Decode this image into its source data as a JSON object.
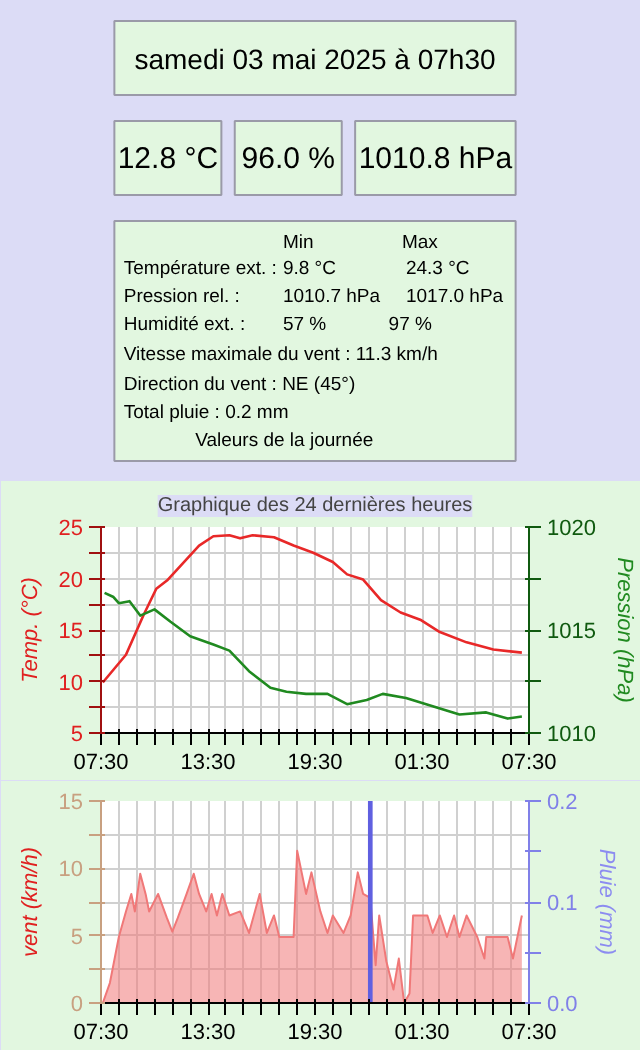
{
  "chart_data": [
    {
      "type": "other",
      "title": "samedi 03 mai 2025 à 07h30"
    },
    {
      "type": "other",
      "annotations": [
        "12.8 °C",
        "96.0 %",
        "1010.8 hPa"
      ]
    },
    {
      "type": "other",
      "annotations": [
        "Min",
        "Max",
        "Température ext. :",
        "9.8 °C",
        "24.3 °C",
        "Pression rel. :",
        "1010.7 hPa",
        "1017.0 hPa",
        "Humidité ext. :",
        "57 %",
        "97 %",
        "Vitesse maximale du vent : 11.3 km/h",
        "Direction du vent : NE (45°)",
        "Total pluie : 0.2 mm",
        "Valeurs de la journée"
      ]
    },
    {
      "type": "line",
      "title": "Graphique des 24 dernières heures",
      "ylabel": "Temp. (°C)",
      "y2label": "Pression (hPa)",
      "grid": true,
      "xlim": [
        "2025-05-02T07:30",
        "2025-05-03T07:30"
      ],
      "xticks": [
        {
          "value": "2025-05-02T07:30",
          "label": "07:30"
        },
        {
          "value": "2025-05-02T08:30",
          "label": null
        },
        {
          "value": "2025-05-02T09:30",
          "label": null
        },
        {
          "value": "2025-05-02T10:30",
          "label": null
        },
        {
          "value": "2025-05-02T11:30",
          "label": null
        },
        {
          "value": "2025-05-02T12:30",
          "label": null
        },
        {
          "value": "2025-05-02T13:30",
          "label": "13:30"
        },
        {
          "value": "2025-05-02T14:30",
          "label": null
        },
        {
          "value": "2025-05-02T15:30",
          "label": null
        },
        {
          "value": "2025-05-02T16:30",
          "label": null
        },
        {
          "value": "2025-05-02T17:30",
          "label": null
        },
        {
          "value": "2025-05-02T18:30",
          "label": null
        },
        {
          "value": "2025-05-02T19:30",
          "label": "19:30"
        },
        {
          "value": "2025-05-02T20:30",
          "label": null
        },
        {
          "value": "2025-05-02T21:30",
          "label": null
        },
        {
          "value": "2025-05-02T22:30",
          "label": null
        },
        {
          "value": "2025-05-02T23:30",
          "label": null
        },
        {
          "value": "2025-05-03T00:30",
          "label": null
        },
        {
          "value": "2025-05-03T01:30",
          "label": "01:30"
        },
        {
          "value": "2025-05-03T02:30",
          "label": null
        },
        {
          "value": "2025-05-03T03:30",
          "label": null
        },
        {
          "value": "2025-05-03T04:30",
          "label": null
        },
        {
          "value": "2025-05-03T05:30",
          "label": null
        },
        {
          "value": "2025-05-03T06:30",
          "label": null
        },
        {
          "value": "2025-05-03T07:30",
          "label": "07:30"
        }
      ],
      "ylim": [
        5,
        25
      ],
      "yticks": [
        5,
        {
          "value": 7.5,
          "label": null
        },
        10,
        {
          "value": 12.5,
          "label": null
        },
        15,
        {
          "value": 17.5,
          "label": null
        },
        20,
        {
          "value": 22.5,
          "label": null
        },
        25
      ],
      "y2lim": [
        1010,
        1020
      ],
      "y2ticks": [
        1010,
        {
          "value": 1012.5,
          "label": null
        },
        1015,
        {
          "value": 1017.5,
          "label": null
        },
        1020
      ],
      "series": [
        {
          "color": "#e82828",
          "x": [
            "2025-05-02T07:36",
            "2025-05-02T08:54",
            "2025-05-02T09:54",
            "2025-05-02T10:36",
            "2025-05-02T11:12",
            "2025-05-02T12:06",
            "2025-05-02T13:00",
            "2025-05-02T13:48",
            "2025-05-02T14:42",
            "2025-05-02T15:18",
            "2025-05-02T16:00",
            "2025-05-02T17:12",
            "2025-05-02T18:18",
            "2025-05-02T19:24",
            "2025-05-02T20:30",
            "2025-05-02T21:18",
            "2025-05-02T22:12",
            "2025-05-02T23:12",
            "2025-05-03T00:18",
            "2025-05-03T01:24",
            "2025-05-03T02:30",
            "2025-05-03T04:00",
            "2025-05-03T05:30",
            "2025-05-03T07:06"
          ],
          "values": [
            9.9,
            12.6,
            16.5,
            19.0,
            19.8,
            21.5,
            23.2,
            24.1,
            24.2,
            23.9,
            24.2,
            24.0,
            23.2,
            22.5,
            21.6,
            20.4,
            19.9,
            17.9,
            16.7,
            16.0,
            14.8,
            13.8,
            13.1,
            12.8
          ]
        },
        {
          "color": "#208a20",
          "axis": "y2",
          "x": [
            "2025-05-02T07:42",
            "2025-05-02T08:12",
            "2025-05-02T08:30",
            "2025-05-02T09:06",
            "2025-05-02T09:42",
            "2025-05-02T10:30",
            "2025-05-02T11:24",
            "2025-05-02T12:30",
            "2025-05-02T13:48",
            "2025-05-02T14:42",
            "2025-05-02T15:48",
            "2025-05-02T17:00",
            "2025-05-02T17:54",
            "2025-05-02T19:00",
            "2025-05-02T20:12",
            "2025-05-02T21:18",
            "2025-05-02T22:24",
            "2025-05-02T23:18",
            "2025-05-03T00:36",
            "2025-05-03T02:06",
            "2025-05-03T03:36",
            "2025-05-03T05:06",
            "2025-05-03T06:18",
            "2025-05-03T07:06"
          ],
          "values": [
            1016.8,
            1016.6,
            1016.3,
            1016.4,
            1015.7,
            1016.0,
            1015.4,
            1014.7,
            1014.3,
            1014.0,
            1013.0,
            1012.2,
            1012.0,
            1011.9,
            1011.9,
            1011.4,
            1011.6,
            1011.9,
            1011.7,
            1011.3,
            1010.9,
            1011.0,
            1010.7,
            1010.8
          ]
        }
      ]
    },
    {
      "type": "area",
      "ylabel": "vent (km/h)",
      "y2label": "Pluie (mm)",
      "grid": true,
      "xlim": [
        "2025-05-02T07:30",
        "2025-05-03T07:30"
      ],
      "xticks": [
        {
          "value": "2025-05-02T07:30",
          "label": "07:30"
        },
        {
          "value": "2025-05-02T08:30",
          "label": null
        },
        {
          "value": "2025-05-02T09:30",
          "label": null
        },
        {
          "value": "2025-05-02T10:30",
          "label": null
        },
        {
          "value": "2025-05-02T11:30",
          "label": null
        },
        {
          "value": "2025-05-02T12:30",
          "label": null
        },
        {
          "value": "2025-05-02T13:30",
          "label": "13:30"
        },
        {
          "value": "2025-05-02T14:30",
          "label": null
        },
        {
          "value": "2025-05-02T15:30",
          "label": null
        },
        {
          "value": "2025-05-02T16:30",
          "label": null
        },
        {
          "value": "2025-05-02T17:30",
          "label": null
        },
        {
          "value": "2025-05-02T18:30",
          "label": null
        },
        {
          "value": "2025-05-02T19:30",
          "label": "19:30"
        },
        {
          "value": "2025-05-02T20:30",
          "label": null
        },
        {
          "value": "2025-05-02T21:30",
          "label": null
        },
        {
          "value": "2025-05-02T22:30",
          "label": null
        },
        {
          "value": "2025-05-02T23:30",
          "label": null
        },
        {
          "value": "2025-05-03T00:30",
          "label": null
        },
        {
          "value": "2025-05-03T01:30",
          "label": "01:30"
        },
        {
          "value": "2025-05-03T02:30",
          "label": null
        },
        {
          "value": "2025-05-03T03:30",
          "label": null
        },
        {
          "value": "2025-05-03T04:30",
          "label": null
        },
        {
          "value": "2025-05-03T05:30",
          "label": null
        },
        {
          "value": "2025-05-03T06:30",
          "label": null
        },
        {
          "value": "2025-05-03T07:30",
          "label": "07:30"
        }
      ],
      "ylim": [
        0,
        15
      ],
      "yticks": [
        0,
        {
          "value": 2.5,
          "label": null
        },
        5,
        {
          "value": 7.5,
          "label": null
        },
        10,
        {
          "value": 12.5,
          "label": null
        },
        15
      ],
      "y2lim": [
        0,
        0.2
      ],
      "y2ticks": [
        {
          "value": 0,
          "label": "0.0"
        },
        {
          "value": 0.05,
          "label": null
        },
        {
          "value": 0.1,
          "label": "0.1"
        },
        {
          "value": 0.15,
          "label": null
        },
        {
          "value": 0.2,
          "label": "0.2"
        }
      ],
      "series": [
        {
          "color": "#f07878",
          "x": [
            "2025-05-02T07:36",
            "2025-05-02T08:00",
            "2025-05-02T08:30",
            "2025-05-02T08:54",
            "2025-05-02T09:12",
            "2025-05-02T09:24",
            "2025-05-02T09:42",
            "2025-05-02T10:00",
            "2025-05-02T10:12",
            "2025-05-02T10:42",
            "2025-05-02T11:12",
            "2025-05-02T11:30",
            "2025-05-02T11:48",
            "2025-05-02T12:18",
            "2025-05-02T12:42",
            "2025-05-02T13:00",
            "2025-05-02T13:24",
            "2025-05-02T13:42",
            "2025-05-02T14:00",
            "2025-05-02T14:18",
            "2025-05-02T14:42",
            "2025-05-02T15:18",
            "2025-05-02T15:48",
            "2025-05-02T16:24",
            "2025-05-02T16:48",
            "2025-05-02T17:12",
            "2025-05-02T17:30",
            "2025-05-02T18:18",
            "2025-05-02T18:30",
            "2025-05-02T19:00",
            "2025-05-02T19:18",
            "2025-05-02T19:48",
            "2025-05-02T20:12",
            "2025-05-02T20:30",
            "2025-05-02T21:06",
            "2025-05-02T21:30",
            "2025-05-02T21:54",
            "2025-05-02T22:12",
            "2025-05-02T22:36",
            "2025-05-02T22:54",
            "2025-05-02T23:06",
            "2025-05-02T23:30",
            "2025-05-02T23:54",
            "2025-05-03T00:12",
            "2025-05-03T00:30",
            "2025-05-03T00:48",
            "2025-05-03T01:00",
            "2025-05-03T01:48",
            "2025-05-03T02:06",
            "2025-05-03T02:30",
            "2025-05-03T02:54",
            "2025-05-03T03:18",
            "2025-05-03T03:36",
            "2025-05-03T04:00",
            "2025-05-03T04:36",
            "2025-05-03T05:00",
            "2025-05-03T05:06",
            "2025-05-03T06:18",
            "2025-05-03T06:36",
            "2025-05-03T07:06"
          ],
          "values": [
            0,
            1.5,
            4.9,
            6.8,
            8.1,
            6.8,
            9.6,
            8.1,
            6.8,
            8.1,
            6.3,
            5.3,
            6.3,
            8.1,
            9.6,
            8.1,
            6.8,
            8.1,
            6.5,
            8.1,
            6.5,
            6.8,
            5.2,
            8.1,
            5.2,
            6.5,
            4.9,
            4.9,
            11.3,
            8.1,
            9.7,
            6.8,
            5.2,
            6.5,
            5.2,
            6.5,
            9.7,
            8.1,
            7.8,
            2.8,
            6.5,
            3.1,
            1.0,
            3.3,
            0,
            0.7,
            6.5,
            6.5,
            5.2,
            6.5,
            4.9,
            6.5,
            4.9,
            6.5,
            4.9,
            3.3,
            4.9,
            4.9,
            3.3,
            6.5
          ]
        },
        {
          "type": "bar",
          "axis": "y2",
          "color": "#6060e0",
          "x": [
            "2025-05-02T22:36"
          ],
          "values": [
            0.2
          ]
        }
      ]
    }
  ]
}
